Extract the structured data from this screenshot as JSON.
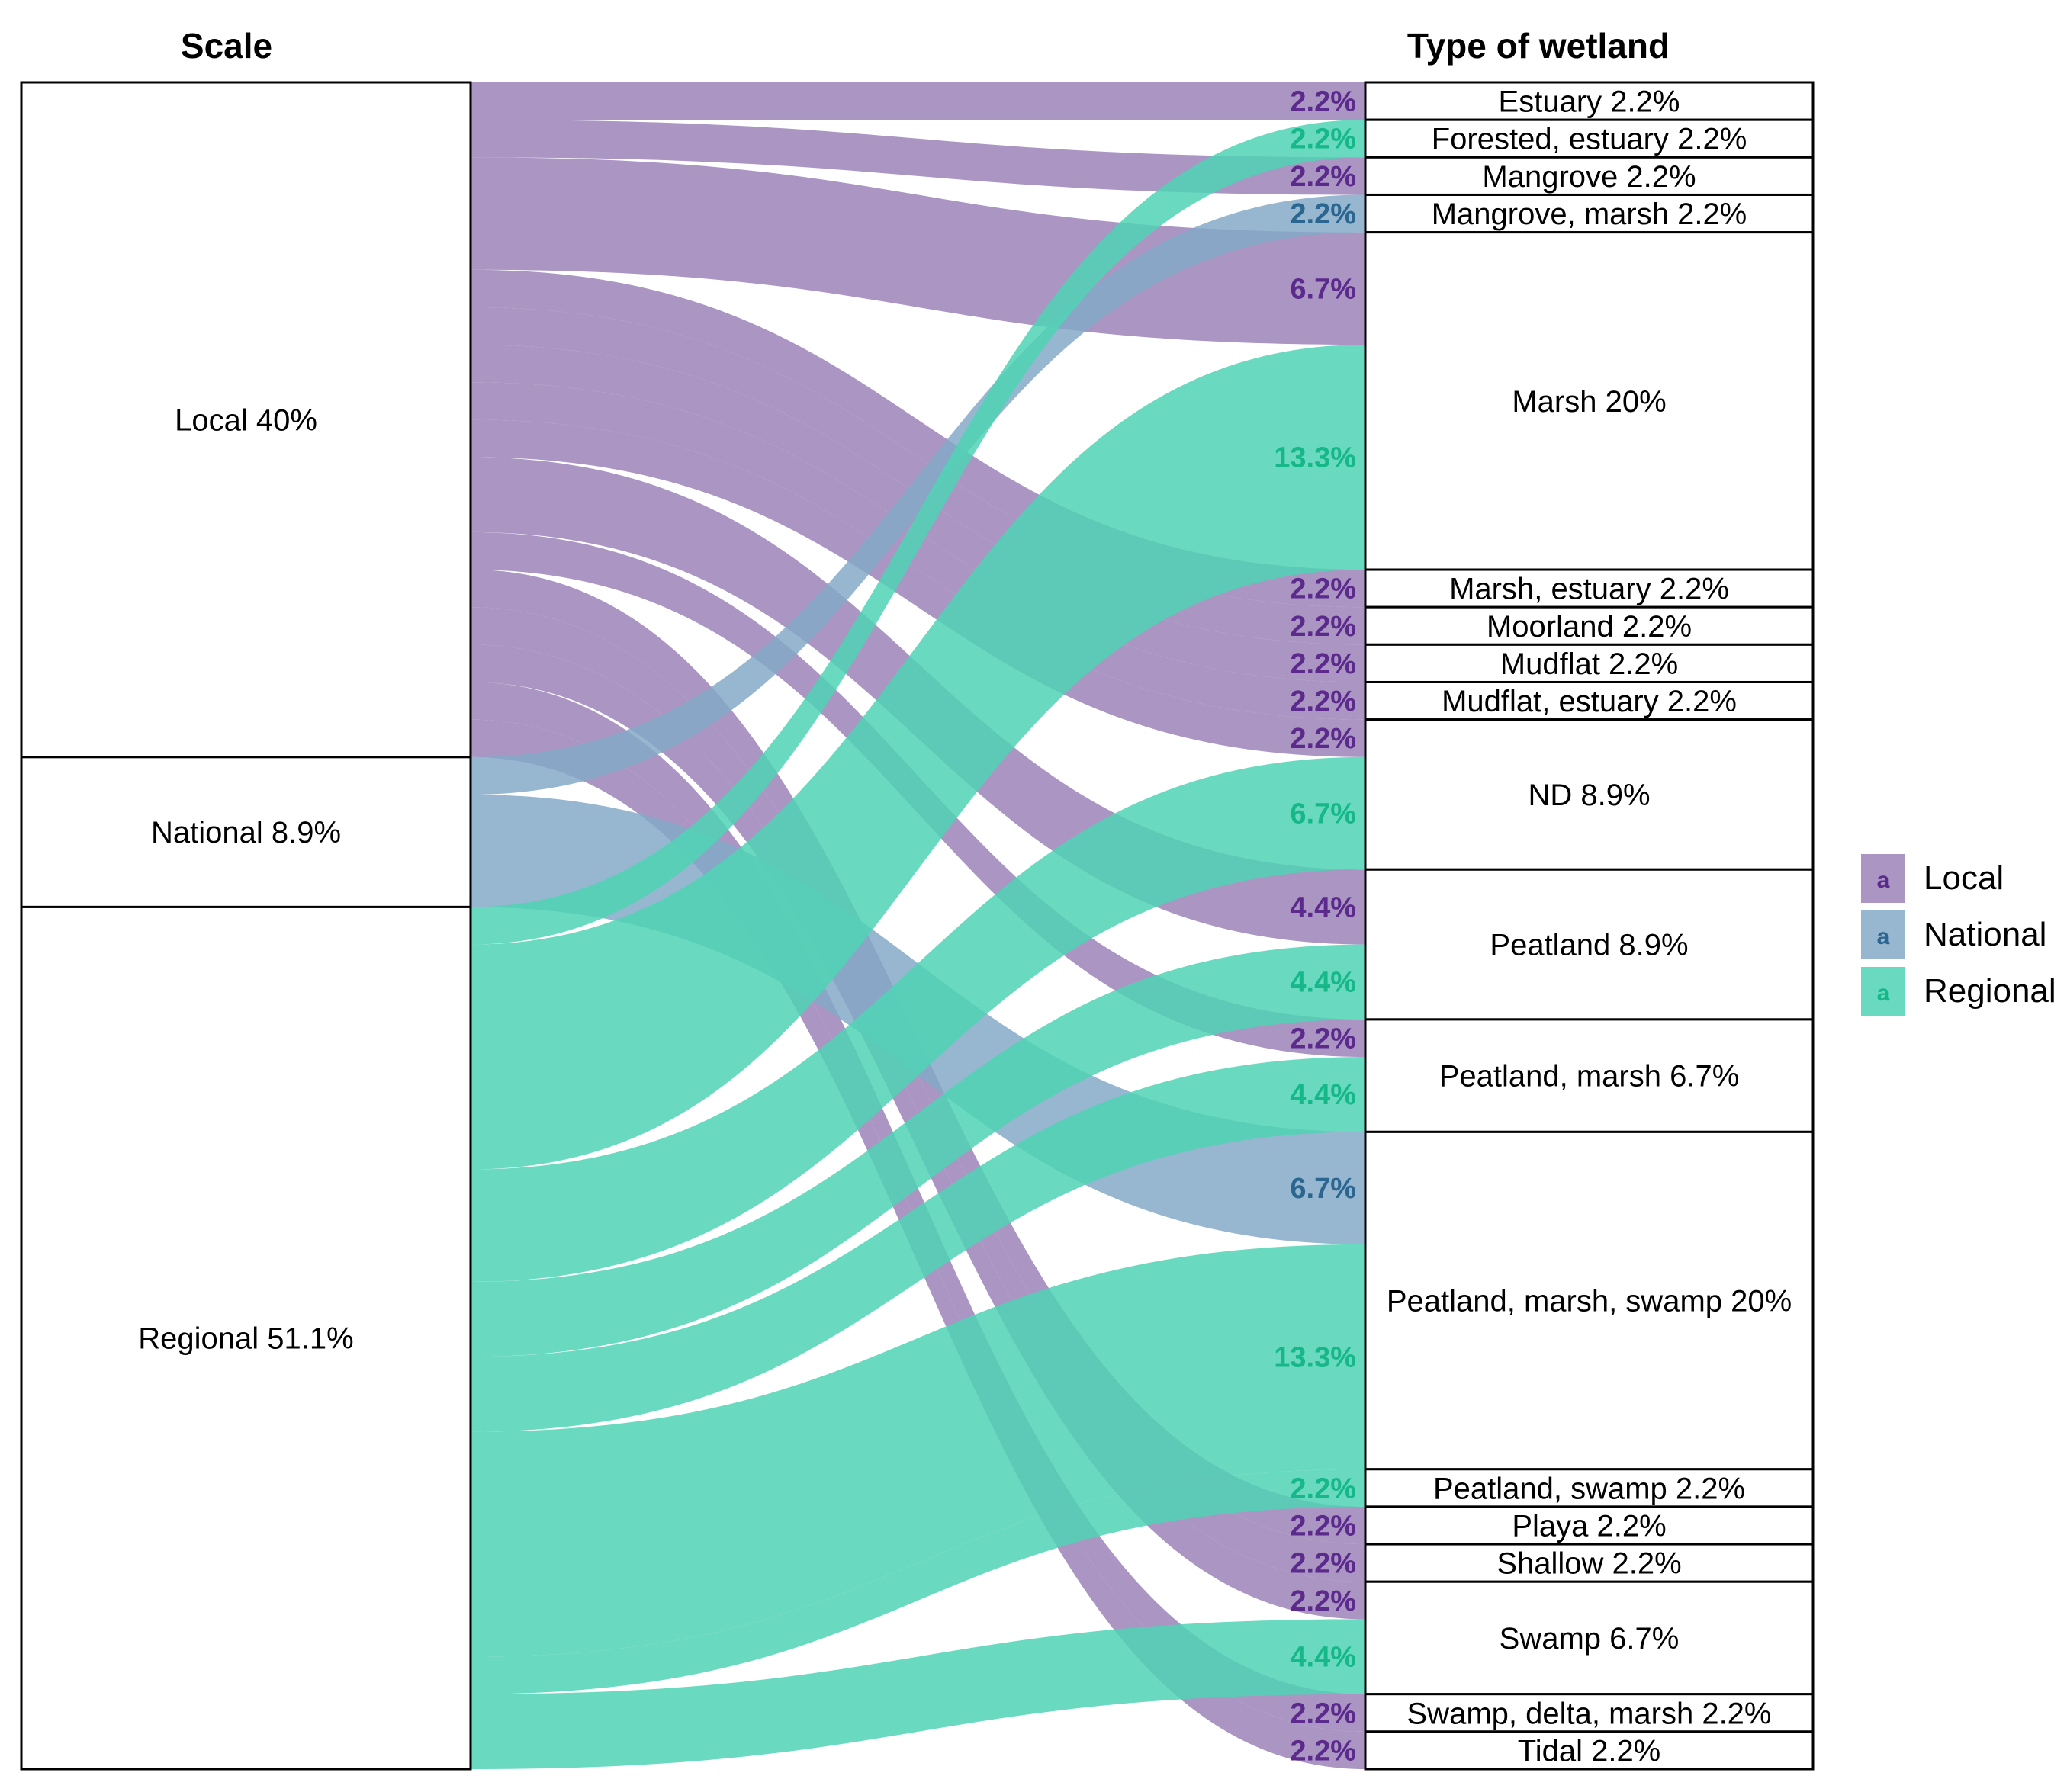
{
  "chart_data": {
    "type": "alluvial",
    "axis_titles": [
      "Scale",
      "Type of wetland"
    ],
    "scales": [
      {
        "name": "Local",
        "label": "Local  40%",
        "color": "#9b82b8",
        "text_color": "#5b2a8c"
      },
      {
        "name": "National",
        "label": "National  8.9%",
        "color": "#85a9c7",
        "text_color": "#2b6690"
      },
      {
        "name": "Regional",
        "label": "Regional  51.1%",
        "color": "#4fd4b4",
        "text_color": "#16b88a"
      }
    ],
    "wetland_types": [
      {
        "name": "Estuary",
        "label": "Estuary  2.2%",
        "units": 1
      },
      {
        "name": "Forested, estuary",
        "label": "Forested, estuary  2.2%",
        "units": 1
      },
      {
        "name": "Mangrove",
        "label": "Mangrove  2.2%",
        "units": 1
      },
      {
        "name": "Mangrove, marsh",
        "label": "Mangrove, marsh  2.2%",
        "units": 1
      },
      {
        "name": "Marsh",
        "label": "Marsh  20%",
        "units": 9
      },
      {
        "name": "Marsh, estuary",
        "label": "Marsh, estuary  2.2%",
        "units": 1
      },
      {
        "name": "Moorland",
        "label": "Moorland  2.2%",
        "units": 1
      },
      {
        "name": "Mudflat",
        "label": "Mudflat  2.2%",
        "units": 1
      },
      {
        "name": "Mudflat, estuary",
        "label": "Mudflat, estuary  2.2%",
        "units": 1
      },
      {
        "name": "ND",
        "label": "ND  8.9%",
        "units": 4
      },
      {
        "name": "Peatland",
        "label": "Peatland  8.9%",
        "units": 4
      },
      {
        "name": "Peatland, marsh",
        "label": "Peatland, marsh  6.7%",
        "units": 3
      },
      {
        "name": "Peatland, marsh, swamp",
        "label": "Peatland, marsh, swamp  20%",
        "units": 9
      },
      {
        "name": "Peatland, swamp",
        "label": "Peatland, swamp  2.2%",
        "units": 1
      },
      {
        "name": "Playa",
        "label": "Playa  2.2%",
        "units": 1
      },
      {
        "name": "Shallow",
        "label": "Shallow  2.2%",
        "units": 1
      },
      {
        "name": "Swamp",
        "label": "Swamp  6.7%",
        "units": 3
      },
      {
        "name": "Swamp, delta, marsh",
        "label": "Swamp, delta, marsh  2.2%",
        "units": 1
      },
      {
        "name": "Tidal",
        "label": "Tidal  2.2%",
        "units": 1
      }
    ],
    "flows": [
      {
        "scale": "Local",
        "type": "Estuary",
        "units": 1,
        "label": "2.2%"
      },
      {
        "scale": "Local",
        "type": "Mangrove",
        "units": 1,
        "label": "2.2%"
      },
      {
        "scale": "Local",
        "type": "Marsh",
        "units": 3,
        "label": "6.7%"
      },
      {
        "scale": "Local",
        "type": "Marsh, estuary",
        "units": 1,
        "label": "2.2%"
      },
      {
        "scale": "Local",
        "type": "Moorland",
        "units": 1,
        "label": "2.2%"
      },
      {
        "scale": "Local",
        "type": "Mudflat",
        "units": 1,
        "label": "2.2%"
      },
      {
        "scale": "Local",
        "type": "Mudflat, estuary",
        "units": 1,
        "label": "2.2%"
      },
      {
        "scale": "Local",
        "type": "ND",
        "units": 1,
        "label": "2.2%"
      },
      {
        "scale": "Local",
        "type": "Peatland",
        "units": 2,
        "label": "4.4%"
      },
      {
        "scale": "Local",
        "type": "Peatland, marsh",
        "units": 1,
        "label": "2.2%"
      },
      {
        "scale": "Local",
        "type": "Playa",
        "units": 1,
        "label": "2.2%"
      },
      {
        "scale": "Local",
        "type": "Shallow",
        "units": 1,
        "label": "2.2%"
      },
      {
        "scale": "Local",
        "type": "Swamp",
        "units": 1,
        "label": "2.2%"
      },
      {
        "scale": "Local",
        "type": "Swamp, delta, marsh",
        "units": 1,
        "label": "2.2%"
      },
      {
        "scale": "Local",
        "type": "Tidal",
        "units": 1,
        "label": "2.2%"
      },
      {
        "scale": "National",
        "type": "Mangrove, marsh",
        "units": 1,
        "label": "2.2%"
      },
      {
        "scale": "National",
        "type": "Peatland, marsh, swamp",
        "units": 3,
        "label": "6.7%"
      },
      {
        "scale": "Regional",
        "type": "Forested, estuary",
        "units": 1,
        "label": "2.2%"
      },
      {
        "scale": "Regional",
        "type": "Marsh",
        "units": 6,
        "label": "13.3%"
      },
      {
        "scale": "Regional",
        "type": "ND",
        "units": 3,
        "label": "6.7%"
      },
      {
        "scale": "Regional",
        "type": "Peatland",
        "units": 2,
        "label": "4.4%"
      },
      {
        "scale": "Regional",
        "type": "Peatland, marsh",
        "units": 2,
        "label": "4.4%"
      },
      {
        "scale": "Regional",
        "type": "Peatland, marsh, swamp",
        "units": 6,
        "label": "13.3%"
      },
      {
        "scale": "Regional",
        "type": "Peatland, swamp",
        "units": 1,
        "label": "2.2%"
      },
      {
        "scale": "Regional",
        "type": "Swamp",
        "units": 2,
        "label": "4.4%"
      }
    ],
    "legend": {
      "position": "right",
      "key_glyph": "a",
      "items": [
        "Local",
        "National",
        "Regional"
      ]
    }
  }
}
